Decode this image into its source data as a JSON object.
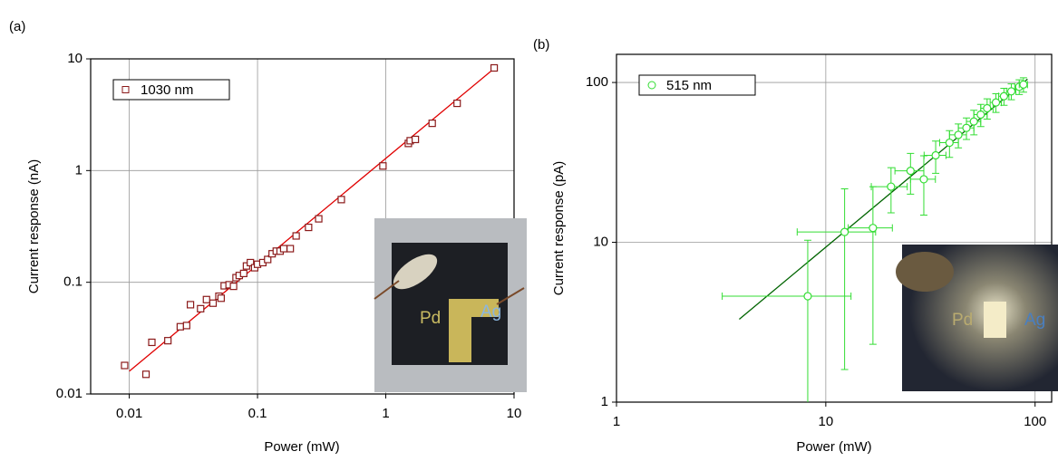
{
  "chart_data": [
    {
      "type": "scatter",
      "panel_label": "(a)",
      "x_label": "Power (mW)",
      "y_label": "Current response (nA)",
      "xscale": "log",
      "yscale": "log",
      "xlim": [
        0.005,
        10
      ],
      "ylim": [
        0.01,
        10
      ],
      "xticks": [
        0.01,
        0.1,
        1,
        10
      ],
      "yticks": [
        0.01,
        0.1,
        1,
        10
      ],
      "grid": true,
      "legend": "upper left",
      "series": [
        {
          "name": "1030 nm",
          "color": "#8b1a1a",
          "marker": "square",
          "x": [
            0.0092,
            0.0135,
            0.015,
            0.02,
            0.025,
            0.028,
            0.03,
            0.036,
            0.04,
            0.045,
            0.05,
            0.052,
            0.055,
            0.06,
            0.065,
            0.068,
            0.072,
            0.078,
            0.082,
            0.088,
            0.095,
            0.1,
            0.11,
            0.12,
            0.13,
            0.14,
            0.15,
            0.16,
            0.18,
            0.2,
            0.25,
            0.3,
            0.45,
            0.95,
            1.5,
            1.55,
            1.7,
            2.3,
            3.6,
            7.0
          ],
          "values": [
            0.018,
            0.015,
            0.029,
            0.03,
            0.04,
            0.041,
            0.063,
            0.058,
            0.07,
            0.065,
            0.075,
            0.072,
            0.093,
            0.095,
            0.092,
            0.11,
            0.115,
            0.12,
            0.14,
            0.15,
            0.135,
            0.145,
            0.15,
            0.16,
            0.18,
            0.19,
            0.19,
            0.2,
            0.2,
            0.26,
            0.31,
            0.37,
            0.55,
            1.1,
            1.75,
            1.85,
            1.9,
            2.65,
            4.0,
            8.3
          ]
        }
      ],
      "fit": {
        "color": "#e00000",
        "x": [
          0.01,
          7
        ],
        "values": [
          0.016,
          8.2
        ]
      },
      "inset_labels": [
        "Pd",
        "Ag"
      ]
    },
    {
      "type": "scatter",
      "panel_label": "(b)",
      "x_label": "Power (mW)",
      "y_label": "Current response (pA)",
      "xscale": "log",
      "yscale": "log",
      "xlim": [
        1,
        120
      ],
      "ylim": [
        1,
        150
      ],
      "xticks": [
        1,
        10,
        100
      ],
      "yticks": [
        1,
        10,
        100
      ],
      "grid": true,
      "legend": "upper left",
      "series": [
        {
          "name": "515 nm",
          "color": "#33dd33",
          "marker": "circle",
          "x": [
            8.2,
            12.3,
            16.8,
            20.5,
            25.4,
            29.4,
            33.5,
            39,
            43,
            47,
            51,
            55,
            59,
            65,
            71,
            77,
            84,
            88
          ],
          "values": [
            4.6,
            11.6,
            12.3,
            22.3,
            28,
            24.8,
            35,
            42,
            47,
            52,
            57,
            63,
            69,
            75,
            82,
            88,
            94,
            97
          ],
          "x_errors": [
            5,
            5,
            4,
            4,
            4,
            4,
            4,
            4,
            4,
            4,
            4,
            4,
            4,
            4,
            4,
            4,
            4,
            4
          ],
          "y_errors": [
            5.7,
            10,
            10,
            7,
            8,
            10,
            8,
            8,
            8,
            8,
            10,
            10,
            10,
            10,
            10,
            10,
            10,
            10
          ]
        }
      ],
      "fit": {
        "color": "#006400",
        "x": [
          3.86,
          92
        ],
        "values": [
          3.3,
          105
        ]
      },
      "inset_labels": [
        "Pd",
        "Ag"
      ]
    }
  ]
}
